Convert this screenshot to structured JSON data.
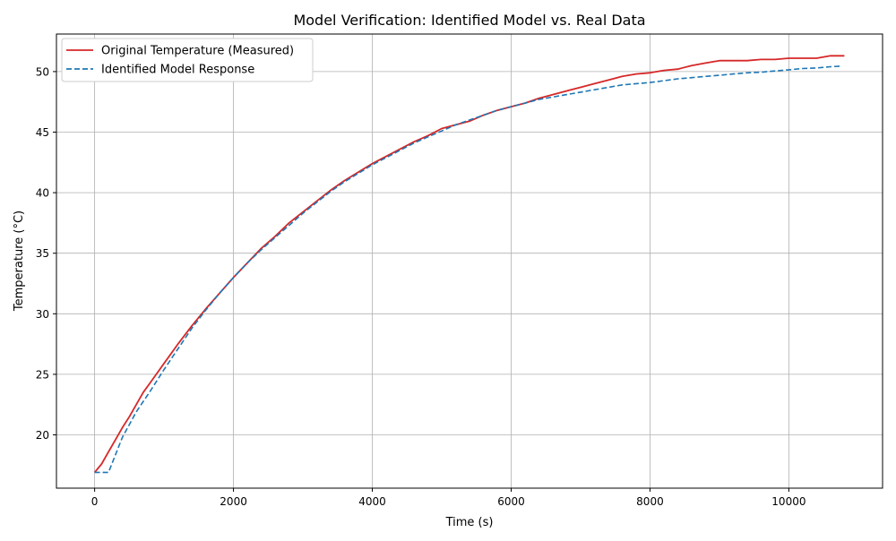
{
  "chart_data": {
    "type": "line",
    "title": "Model Verification: Identified Model vs. Real Data",
    "xlabel": "Time (s)",
    "ylabel": "Temperature (°C)",
    "xlim": [
      -550,
      11350
    ],
    "ylim": [
      15.6,
      53.1
    ],
    "xticks": [
      0,
      2000,
      4000,
      6000,
      8000,
      10000
    ],
    "yticks": [
      20,
      25,
      30,
      35,
      40,
      45,
      50
    ],
    "grid": true,
    "legend_position": "upper-left",
    "series": [
      {
        "name": "Original Temperature (Measured)",
        "style": "solid",
        "color": "#d62728",
        "x": [
          0,
          100,
          200,
          300,
          400,
          500,
          600,
          700,
          800,
          900,
          1000,
          1200,
          1400,
          1600,
          1800,
          2000,
          2200,
          2400,
          2600,
          2800,
          3000,
          3200,
          3400,
          3600,
          3800,
          4000,
          4200,
          4400,
          4600,
          4800,
          5000,
          5200,
          5400,
          5600,
          5800,
          6000,
          6200,
          6400,
          6600,
          6800,
          7000,
          7200,
          7400,
          7600,
          7800,
          8000,
          8200,
          8400,
          8600,
          8800,
          9000,
          9200,
          9400,
          9600,
          9800,
          10000,
          10200,
          10400,
          10600,
          10800
        ],
        "y": [
          16.9,
          17.6,
          18.6,
          19.6,
          20.6,
          21.5,
          22.5,
          23.5,
          24.3,
          25.1,
          25.9,
          27.5,
          29.0,
          30.4,
          31.7,
          33.0,
          34.2,
          35.4,
          36.4,
          37.5,
          38.4,
          39.3,
          40.2,
          41.0,
          41.7,
          42.4,
          43.0,
          43.6,
          44.2,
          44.7,
          45.3,
          45.6,
          45.9,
          46.4,
          46.8,
          47.1,
          47.4,
          47.8,
          48.1,
          48.4,
          48.7,
          49.0,
          49.3,
          49.6,
          49.8,
          49.9,
          50.1,
          50.2,
          50.5,
          50.7,
          50.9,
          50.9,
          50.9,
          51.0,
          51.0,
          51.1,
          51.1,
          51.1,
          51.3,
          51.3
        ]
      },
      {
        "name": "Identified Model Response",
        "style": "dashed",
        "color": "#1f77b4",
        "x": [
          0,
          200,
          400,
          600,
          800,
          1000,
          1200,
          1400,
          1600,
          1800,
          2000,
          2200,
          2400,
          2600,
          2800,
          3000,
          3200,
          3400,
          3600,
          3800,
          4000,
          4200,
          4400,
          4600,
          4800,
          5000,
          5200,
          5400,
          5600,
          5800,
          6000,
          6200,
          6400,
          6600,
          6800,
          7000,
          7200,
          7400,
          7600,
          7800,
          8000,
          8200,
          8400,
          8600,
          8800,
          9000,
          9200,
          9400,
          9600,
          9800,
          10000,
          10200,
          10400,
          10600,
          10750
        ],
        "y": [
          16.9,
          16.9,
          19.8,
          21.9,
          23.6,
          25.4,
          27.1,
          28.8,
          30.3,
          31.7,
          33.0,
          34.2,
          35.3,
          36.3,
          37.3,
          38.3,
          39.2,
          40.1,
          40.9,
          41.6,
          42.3,
          42.9,
          43.5,
          44.1,
          44.6,
          45.1,
          45.6,
          46.0,
          46.4,
          46.8,
          47.1,
          47.4,
          47.7,
          47.9,
          48.1,
          48.3,
          48.5,
          48.7,
          48.9,
          49.0,
          49.1,
          49.25,
          49.4,
          49.5,
          49.6,
          49.7,
          49.8,
          49.9,
          49.95,
          50.05,
          50.15,
          50.25,
          50.3,
          50.4,
          50.45
        ]
      }
    ]
  }
}
